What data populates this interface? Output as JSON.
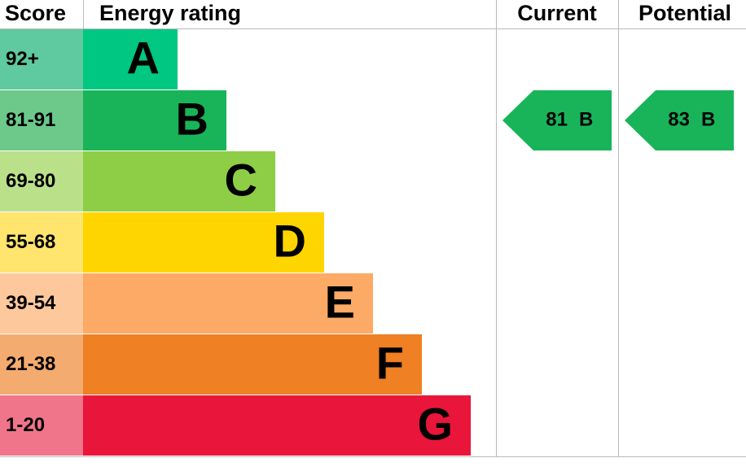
{
  "header": {
    "score": "Score",
    "rating": "Energy rating",
    "current": "Current",
    "potential": "Potential"
  },
  "rows": [
    {
      "score": "92+",
      "letter": "A"
    },
    {
      "score": "81-91",
      "letter": "B"
    },
    {
      "score": "69-80",
      "letter": "C"
    },
    {
      "score": "55-68",
      "letter": "D"
    },
    {
      "score": "39-54",
      "letter": "E"
    },
    {
      "score": "21-38",
      "letter": "F"
    },
    {
      "score": "1-20",
      "letter": "G"
    }
  ],
  "current": {
    "score": 81,
    "rating": "B"
  },
  "potential": {
    "score": 83,
    "rating": "B"
  }
}
